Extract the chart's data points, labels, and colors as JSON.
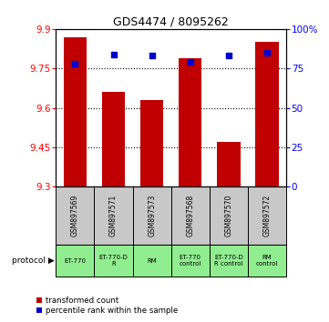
{
  "title": "GDS4474 / 8095262",
  "samples": [
    "GSM897569",
    "GSM897571",
    "GSM897573",
    "GSM897568",
    "GSM897570",
    "GSM897572"
  ],
  "bar_values": [
    9.87,
    9.66,
    9.63,
    9.79,
    9.47,
    9.85
  ],
  "percentile_values": [
    78,
    84,
    83,
    79,
    83,
    85
  ],
  "ylim_left": [
    9.3,
    9.9
  ],
  "ylim_right": [
    0,
    100
  ],
  "yticks_left": [
    9.3,
    9.45,
    9.6,
    9.75,
    9.9
  ],
  "yticks_right": [
    0,
    25,
    50,
    75,
    100
  ],
  "ytick_labels_right": [
    "0",
    "25",
    "50",
    "75",
    "100%"
  ],
  "bar_color": "#C00000",
  "dot_color": "#0000CC",
  "protocol_labels": [
    "ET-770",
    "ET-770-D\nR",
    "RM",
    "ET-770\ncontrol",
    "ET-770-D\nR control",
    "RM\ncontrol"
  ],
  "protocol_bg": "#90EE90",
  "sample_bg": "#C8C8C8",
  "legend_bar_label": "transformed count",
  "legend_dot_label": "percentile rank within the sample",
  "protocol_text": "protocol"
}
